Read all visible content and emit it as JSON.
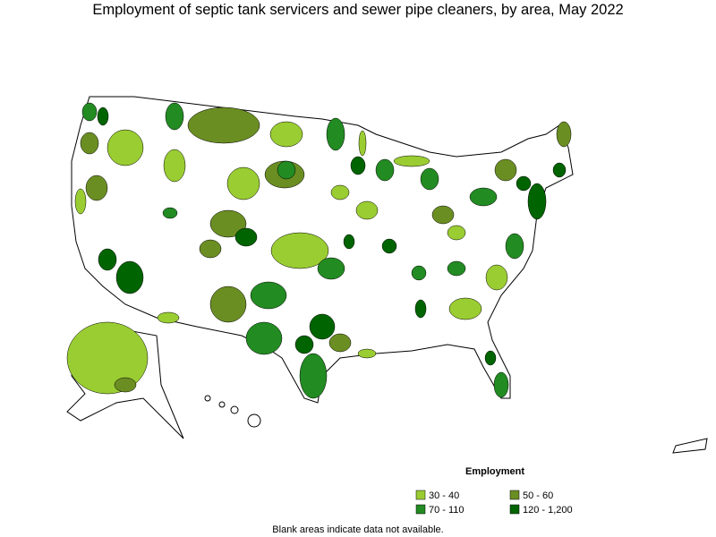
{
  "title": "Employment of septic tank servicers and sewer pipe cleaners, by area, May 2022",
  "legend": {
    "title": "Employment",
    "items": [
      {
        "label": "30 - 40",
        "color": "#9acd32"
      },
      {
        "label": "50 - 60",
        "color": "#6b8e23"
      },
      {
        "label": "70 - 110",
        "color": "#228b22"
      },
      {
        "label": "120 - 1,200",
        "color": "#006400"
      }
    ]
  },
  "note": "Blank areas indicate data not available."
}
